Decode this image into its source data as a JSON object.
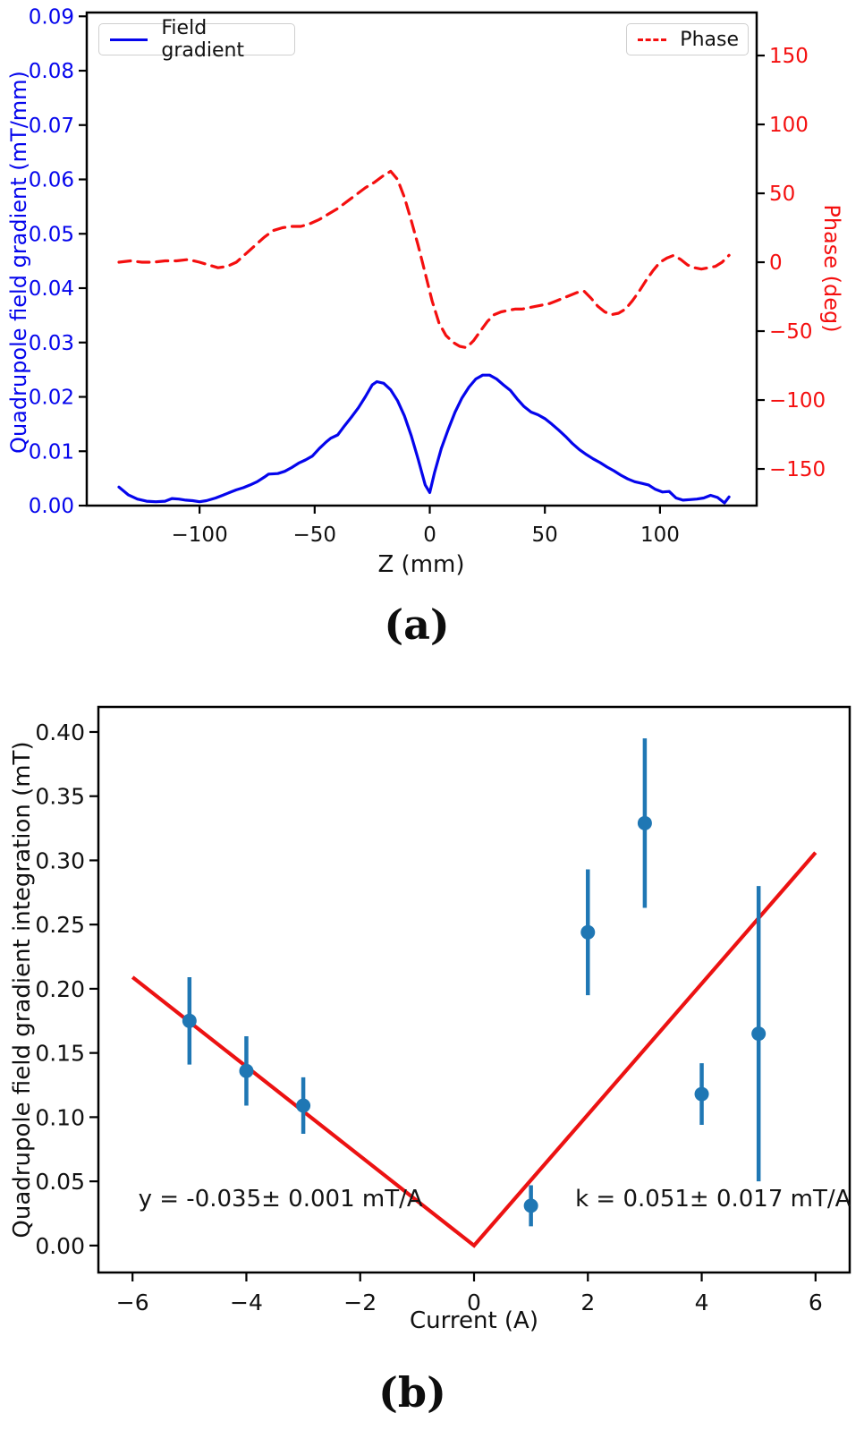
{
  "colors": {
    "field_gradient": "#0505ec",
    "phase": "#f40f0f",
    "marker_blue": "#1f77b4",
    "fit_red": "#ec1212",
    "axis": "#000000",
    "tick_text": "#111111"
  },
  "caption_a": "(a)",
  "caption_b": "(b)",
  "chart_data": [
    {
      "type": "line",
      "xlabel": "Z (mm)",
      "ylabel_left": "Quadrupole field gradient (mT/mm)",
      "ylabel_right": "Phase (deg)",
      "xlim": [
        -149,
        142
      ],
      "ylim_left": [
        0,
        0.0907
      ],
      "ylim_right": [
        -176.6,
        181.2
      ],
      "grid": false,
      "legend_position": "upper-left and upper-right",
      "xticks": [
        {
          "v": -100,
          "label": "−100"
        },
        {
          "v": -50,
          "label": "−50"
        },
        {
          "v": 0,
          "label": "0"
        },
        {
          "v": 50,
          "label": "50"
        },
        {
          "v": 100,
          "label": "100"
        }
      ],
      "yticks_left": [
        {
          "v": 0.0,
          "label": "0.00"
        },
        {
          "v": 0.01,
          "label": "0.01"
        },
        {
          "v": 0.02,
          "label": "0.02"
        },
        {
          "v": 0.03,
          "label": "0.03"
        },
        {
          "v": 0.04,
          "label": "0.04"
        },
        {
          "v": 0.05,
          "label": "0.05"
        },
        {
          "v": 0.06,
          "label": "0.06"
        },
        {
          "v": 0.07,
          "label": "0.07"
        },
        {
          "v": 0.08,
          "label": "0.08"
        },
        {
          "v": 0.09,
          "label": "0.09"
        }
      ],
      "yticks_right": [
        {
          "v": 150,
          "label": "150"
        },
        {
          "v": 100,
          "label": "100"
        },
        {
          "v": 50,
          "label": "50"
        },
        {
          "v": 0,
          "label": "0"
        },
        {
          "v": -50,
          "label": "−50"
        },
        {
          "v": -100,
          "label": "−100"
        },
        {
          "v": -150,
          "label": "−150"
        }
      ],
      "legend": [
        {
          "label": "Field gradient",
          "style": "solid",
          "color": "field_gradient"
        },
        {
          "label": "Phase",
          "style": "dashed",
          "color": "phase"
        }
      ],
      "series": [
        {
          "name": "Field gradient",
          "axis": "left",
          "color": "field_gradient",
          "dash": false,
          "points": [
            [
              -135,
              0.0034
            ],
            [
              -131,
              0.002
            ],
            [
              -127,
              0.0012
            ],
            [
              -123,
              0.0008
            ],
            [
              -119,
              0.0007
            ],
            [
              -115,
              0.0008
            ],
            [
              -112,
              0.0013
            ],
            [
              -109,
              0.0012
            ],
            [
              -106,
              0.001
            ],
            [
              -103,
              0.0009
            ],
            [
              -100,
              0.0007
            ],
            [
              -97,
              0.0009
            ],
            [
              -93,
              0.0014
            ],
            [
              -90,
              0.0019
            ],
            [
              -87,
              0.0024
            ],
            [
              -84,
              0.0029
            ],
            [
              -81,
              0.0033
            ],
            [
              -78,
              0.0038
            ],
            [
              -75,
              0.0044
            ],
            [
              -72,
              0.0052
            ],
            [
              -70,
              0.0058
            ],
            [
              -66,
              0.0059
            ],
            [
              -63,
              0.0063
            ],
            [
              -60,
              0.007
            ],
            [
              -57,
              0.0078
            ],
            [
              -54,
              0.0084
            ],
            [
              -51,
              0.0091
            ],
            [
              -48,
              0.0105
            ],
            [
              -45,
              0.0117
            ],
            [
              -43,
              0.0124
            ],
            [
              -40,
              0.013
            ],
            [
              -37,
              0.0147
            ],
            [
              -34,
              0.0163
            ],
            [
              -31,
              0.018
            ],
            [
              -28,
              0.02
            ],
            [
              -25,
              0.0222
            ],
            [
              -23,
              0.0228
            ],
            [
              -20,
              0.0225
            ],
            [
              -17,
              0.0213
            ],
            [
              -14,
              0.0193
            ],
            [
              -11,
              0.0165
            ],
            [
              -8,
              0.0128
            ],
            [
              -5,
              0.0085
            ],
            [
              -2,
              0.0038
            ],
            [
              0,
              0.0024
            ],
            [
              2,
              0.006
            ],
            [
              5,
              0.0105
            ],
            [
              8,
              0.014
            ],
            [
              11,
              0.0172
            ],
            [
              14,
              0.0198
            ],
            [
              17,
              0.0218
            ],
            [
              20,
              0.0233
            ],
            [
              23,
              0.024
            ],
            [
              26,
              0.024
            ],
            [
              29,
              0.0233
            ],
            [
              32,
              0.0222
            ],
            [
              35,
              0.0212
            ],
            [
              38,
              0.0196
            ],
            [
              41,
              0.0182
            ],
            [
              44,
              0.0172
            ],
            [
              47,
              0.0167
            ],
            [
              50,
              0.016
            ],
            [
              53,
              0.015
            ],
            [
              56,
              0.0139
            ],
            [
              59,
              0.0127
            ],
            [
              62,
              0.0114
            ],
            [
              65,
              0.0103
            ],
            [
              68,
              0.0094
            ],
            [
              71,
              0.0086
            ],
            [
              74,
              0.0079
            ],
            [
              77,
              0.0071
            ],
            [
              80,
              0.0064
            ],
            [
              83,
              0.0056
            ],
            [
              86,
              0.0049
            ],
            [
              89,
              0.0044
            ],
            [
              92,
              0.0041
            ],
            [
              95,
              0.0038
            ],
            [
              98,
              0.003
            ],
            [
              101,
              0.0025
            ],
            [
              104,
              0.0026
            ],
            [
              107,
              0.0014
            ],
            [
              110,
              0.001
            ],
            [
              113,
              0.0011
            ],
            [
              116,
              0.0012
            ],
            [
              119,
              0.0014
            ],
            [
              122,
              0.0019
            ],
            [
              125,
              0.0015
            ],
            [
              128,
              0.0005
            ],
            [
              130,
              0.0016
            ]
          ]
        },
        {
          "name": "Phase",
          "axis": "right",
          "color": "phase",
          "dash": true,
          "points": [
            [
              -135,
              0
            ],
            [
              -130,
              1
            ],
            [
              -125,
              0
            ],
            [
              -120,
              0
            ],
            [
              -115,
              1
            ],
            [
              -110,
              1
            ],
            [
              -105,
              2
            ],
            [
              -100,
              0
            ],
            [
              -96,
              -2
            ],
            [
              -92,
              -4
            ],
            [
              -88,
              -3
            ],
            [
              -84,
              0
            ],
            [
              -80,
              6
            ],
            [
              -76,
              12
            ],
            [
              -72,
              18
            ],
            [
              -68,
              23
            ],
            [
              -64,
              25
            ],
            [
              -60,
              26
            ],
            [
              -56,
              26
            ],
            [
              -52,
              28
            ],
            [
              -48,
              31
            ],
            [
              -44,
              35
            ],
            [
              -40,
              39
            ],
            [
              -36,
              44
            ],
            [
              -32,
              49
            ],
            [
              -28,
              54
            ],
            [
              -24,
              58
            ],
            [
              -20,
              63
            ],
            [
              -17,
              66
            ],
            [
              -14,
              60
            ],
            [
              -11,
              47
            ],
            [
              -8,
              30
            ],
            [
              -5,
              12
            ],
            [
              -2,
              -8
            ],
            [
              1,
              -28
            ],
            [
              4,
              -44
            ],
            [
              7,
              -53
            ],
            [
              10,
              -58
            ],
            [
              13,
              -61
            ],
            [
              16,
              -62
            ],
            [
              19,
              -57
            ],
            [
              22,
              -50
            ],
            [
              25,
              -43
            ],
            [
              28,
              -38
            ],
            [
              31,
              -36
            ],
            [
              34,
              -35
            ],
            [
              37,
              -34
            ],
            [
              40,
              -34
            ],
            [
              43,
              -33
            ],
            [
              46,
              -32
            ],
            [
              49,
              -31
            ],
            [
              52,
              -30
            ],
            [
              55,
              -28
            ],
            [
              58,
              -26
            ],
            [
              61,
              -24
            ],
            [
              64,
              -22
            ],
            [
              67,
              -21
            ],
            [
              70,
              -26
            ],
            [
              73,
              -32
            ],
            [
              76,
              -36
            ],
            [
              79,
              -38
            ],
            [
              82,
              -37
            ],
            [
              85,
              -34
            ],
            [
              88,
              -28
            ],
            [
              91,
              -21
            ],
            [
              94,
              -13
            ],
            [
              97,
              -6
            ],
            [
              100,
              0
            ],
            [
              103,
              3
            ],
            [
              106,
              5
            ],
            [
              109,
              2
            ],
            [
              112,
              -2
            ],
            [
              115,
              -4
            ],
            [
              118,
              -5
            ],
            [
              121,
              -4
            ],
            [
              124,
              -3
            ],
            [
              127,
              0
            ],
            [
              130,
              5
            ]
          ]
        }
      ]
    },
    {
      "type": "scatter",
      "xlabel": "Current (A)",
      "ylabel": "Quadrupole field gradient integration (mT)",
      "xlim": [
        -6.6,
        6.6
      ],
      "ylim": [
        -0.021,
        0.4195
      ],
      "grid": false,
      "xticks": [
        {
          "v": -6,
          "label": "−6"
        },
        {
          "v": -4,
          "label": "−4"
        },
        {
          "v": -2,
          "label": "−2"
        },
        {
          "v": 0,
          "label": "0"
        },
        {
          "v": 2,
          "label": "2"
        },
        {
          "v": 4,
          "label": "4"
        },
        {
          "v": 6,
          "label": "6"
        }
      ],
      "yticks": [
        {
          "v": 0.0,
          "label": "0.00"
        },
        {
          "v": 0.05,
          "label": "0.05"
        },
        {
          "v": 0.1,
          "label": "0.10"
        },
        {
          "v": 0.15,
          "label": "0.15"
        },
        {
          "v": 0.2,
          "label": "0.20"
        },
        {
          "v": 0.25,
          "label": "0.25"
        },
        {
          "v": 0.3,
          "label": "0.30"
        },
        {
          "v": 0.35,
          "label": "0.35"
        },
        {
          "v": 0.4,
          "label": "0.40"
        }
      ],
      "points": [
        {
          "x": -5,
          "y": 0.175,
          "err": 0.034
        },
        {
          "x": -4,
          "y": 0.136,
          "err": 0.027
        },
        {
          "x": -3,
          "y": 0.109,
          "err": 0.022
        },
        {
          "x": 1,
          "y": 0.031,
          "err": 0.016
        },
        {
          "x": 2,
          "y": 0.244,
          "err": 0.049
        },
        {
          "x": 3,
          "y": 0.329,
          "err": 0.066
        },
        {
          "x": 4,
          "y": 0.118,
          "err": 0.024
        },
        {
          "x": 5,
          "y": 0.165,
          "err": 0.115
        }
      ],
      "fit_line": {
        "color": "fit_red",
        "points": [
          [
            -6,
            0.209
          ],
          [
            0,
            0.0
          ],
          [
            6,
            0.306
          ]
        ]
      },
      "annotations": [
        {
          "text": "y = -0.035± 0.001 mT/A",
          "x": -3.4,
          "y": 0.036
        },
        {
          "text": "k = 0.051± 0.017 mT/A",
          "x": 4.2,
          "y": 0.036
        }
      ]
    }
  ]
}
